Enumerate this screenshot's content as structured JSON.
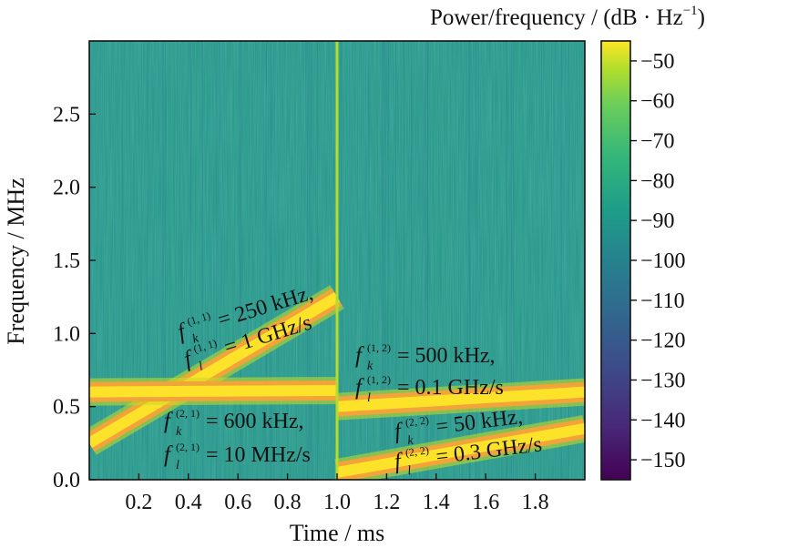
{
  "chart_data": {
    "type": "heatmap",
    "subtype": "spectrogram",
    "xlabel": "Time / ms",
    "ylabel": "Frequency / MHz",
    "xlim": [
      0.0,
      2.0
    ],
    "ylim": [
      0.0,
      3.0
    ],
    "x_ticks": [
      0.2,
      0.4,
      0.6,
      0.8,
      1.0,
      1.2,
      1.4,
      1.6,
      1.8
    ],
    "x_tick_labels": [
      "0.2",
      "0.4",
      "0.6",
      "0.8",
      "1.0",
      "1.2",
      "1.4",
      "1.6",
      "1.8"
    ],
    "y_ticks": [
      0.0,
      0.5,
      1.0,
      1.5,
      2.0,
      2.5
    ],
    "y_tick_labels": [
      "0.0",
      "0.5",
      "1.0",
      "1.5",
      "2.0",
      "2.5"
    ],
    "colorbar": {
      "title": "Power/frequency / (dB · Hz",
      "title_sup": "−1",
      "title_close": ")",
      "range": [
        -155,
        -45
      ],
      "ticks": [
        -50,
        -60,
        -70,
        -80,
        -90,
        -100,
        -110,
        -120,
        -130,
        -140,
        -150
      ],
      "tick_labels": [
        "−50",
        "−60",
        "−70",
        "−80",
        "−90",
        "−100",
        "−110",
        "−120",
        "−130",
        "−140",
        "−150"
      ],
      "colormap": "viridis"
    },
    "background_level_db": -95,
    "components": [
      {
        "id": "1-1",
        "t_start_ms": 0.0,
        "t_end_ms": 1.0,
        "f_start_mhz": 0.25,
        "f_end_mhz": 1.25,
        "chirp_rate": "1 GHz/s",
        "level_db": -48
      },
      {
        "id": "2-1",
        "t_start_ms": 0.0,
        "t_end_ms": 1.0,
        "f_start_mhz": 0.6,
        "f_end_mhz": 0.61,
        "chirp_rate": "10 MHz/s",
        "level_db": -48
      },
      {
        "id": "1-2",
        "t_start_ms": 1.0,
        "t_end_ms": 2.0,
        "f_start_mhz": 0.5,
        "f_end_mhz": 0.6,
        "chirp_rate": "0.1 GHz/s",
        "level_db": -48
      },
      {
        "id": "2-2",
        "t_start_ms": 1.0,
        "t_end_ms": 2.0,
        "f_start_mhz": 0.05,
        "f_end_mhz": 0.35,
        "chirp_rate": "0.3 GHz/s",
        "level_db": -48
      }
    ],
    "transition_time_ms": 1.0,
    "annotations": [
      {
        "id": "a11",
        "lines": [
          {
            "sym": "f",
            "sub": "k",
            "sup": "(1, 1)",
            "text": " = 250 kHz,"
          },
          {
            "sym": "f",
            "sub": "l",
            "sup": "(1, 1)",
            "text": " = 1 GHz/s"
          }
        ]
      },
      {
        "id": "a21",
        "lines": [
          {
            "sym": "f",
            "sub": "k",
            "sup": "(2, 1)",
            "text": " = 600 kHz,"
          },
          {
            "sym": "f",
            "sub": "l",
            "sup": "(2, 1)",
            "text": " = 10 MHz/s"
          }
        ]
      },
      {
        "id": "a12",
        "lines": [
          {
            "sym": "f",
            "sub": "k",
            "sup": "(1, 2)",
            "text": " = 500 kHz,"
          },
          {
            "sym": "f",
            "sub": "l",
            "sup": "(1, 2)",
            "text": " = 0.1 GHz/s"
          }
        ]
      },
      {
        "id": "a22",
        "lines": [
          {
            "sym": "f",
            "sub": "k",
            "sup": "(2, 2)",
            "text": " = 50 kHz,"
          },
          {
            "sym": "f",
            "sub": "l",
            "sup": "(2, 2)",
            "text": " = 0.3 GHz/s"
          }
        ]
      }
    ]
  }
}
